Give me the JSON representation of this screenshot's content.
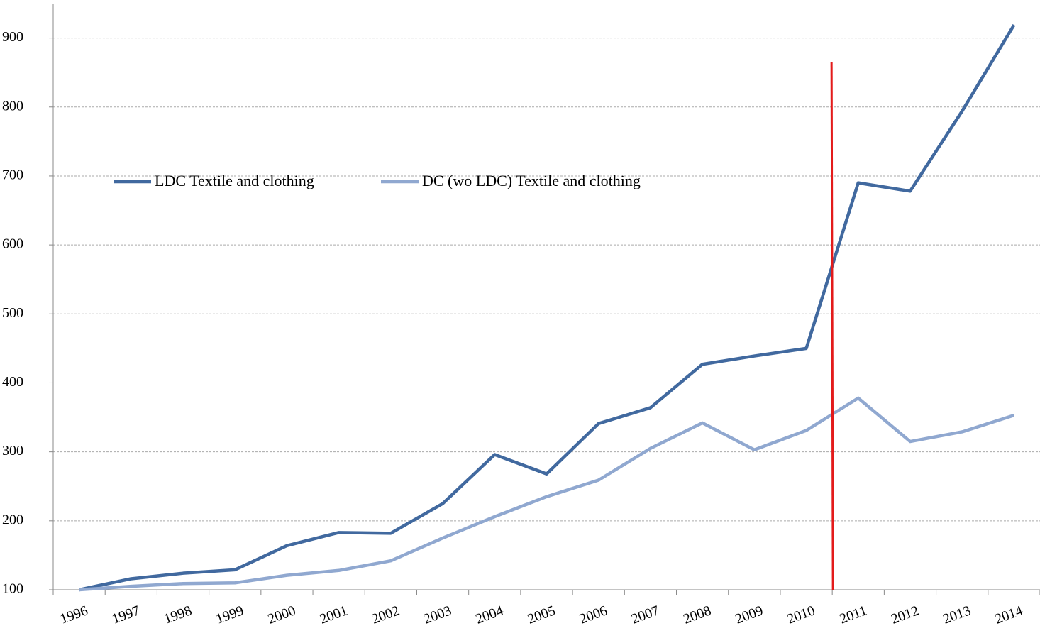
{
  "chart_data": {
    "type": "line",
    "categories": [
      "1996",
      "1997",
      "1998",
      "1999",
      "2000",
      "2001",
      "2002",
      "2003",
      "2004",
      "2005",
      "2006",
      "2007",
      "2008",
      "2009",
      "2010",
      "2011",
      "2012",
      "2013",
      "2014"
    ],
    "series": [
      {
        "name": "LDC Textile and clothing",
        "color": "#41699f",
        "values": [
          100,
          116,
          124,
          129,
          164,
          183,
          182,
          225,
          296,
          268,
          341,
          364,
          427,
          439,
          450,
          690,
          678,
          794,
          919
        ]
      },
      {
        "name": "DC (wo LDC) Textile and clothing",
        "color": "#90a8d0",
        "values": [
          100,
          105,
          109,
          110,
          121,
          128,
          142,
          175,
          206,
          235,
          259,
          305,
          342,
          303,
          331,
          378,
          315,
          329,
          353
        ]
      }
    ],
    "ylim": [
      100,
      950
    ],
    "yticks": [
      100,
      200,
      300,
      400,
      500,
      600,
      700,
      800,
      900
    ],
    "grid": true
  }
}
